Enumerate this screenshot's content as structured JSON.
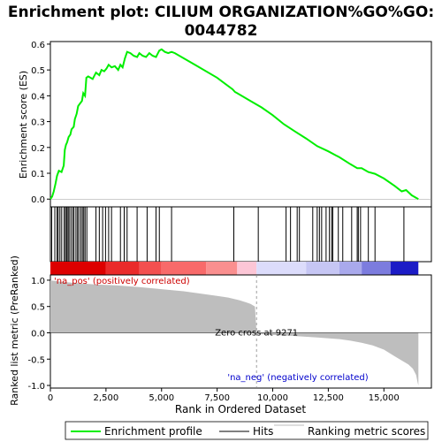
{
  "chart_data": {
    "type": "line",
    "title_lines": [
      "Enrichment plot: CILIUM ORGANIZATION%GO%GO:",
      "0044782"
    ],
    "xlabel": "Rank in Ordered Dataset",
    "xlim": [
      0,
      16500
    ],
    "x_ticks": [
      0,
      2500,
      5000,
      7500,
      10000,
      12500,
      15000
    ],
    "x_tick_labels": [
      "0",
      "2,500",
      "5,000",
      "7,500",
      "10,000",
      "12,500",
      "15,000"
    ],
    "es_panel": {
      "ylabel": "Enrichment score (ES)",
      "ylim": [
        -0.03,
        0.61
      ],
      "y_ticks": [
        0.0,
        0.1,
        0.2,
        0.3,
        0.4,
        0.5,
        0.6
      ],
      "y_tick_labels": [
        "0.0",
        "0.1",
        "0.2",
        "0.3",
        "0.4",
        "0.5",
        "0.6"
      ],
      "series_name": "Enrichment profile",
      "color": "#00ee00",
      "points": [
        [
          0,
          0.0
        ],
        [
          80,
          0.01
        ],
        [
          150,
          0.03
        ],
        [
          230,
          0.06
        ],
        [
          300,
          0.09
        ],
        [
          380,
          0.11
        ],
        [
          500,
          0.105
        ],
        [
          600,
          0.13
        ],
        [
          650,
          0.19
        ],
        [
          700,
          0.21
        ],
        [
          750,
          0.22
        ],
        [
          820,
          0.24
        ],
        [
          900,
          0.25
        ],
        [
          950,
          0.27
        ],
        [
          1050,
          0.28
        ],
        [
          1100,
          0.31
        ],
        [
          1180,
          0.33
        ],
        [
          1250,
          0.36
        ],
        [
          1330,
          0.37
        ],
        [
          1420,
          0.38
        ],
        [
          1480,
          0.41
        ],
        [
          1560,
          0.4
        ],
        [
          1620,
          0.47
        ],
        [
          1700,
          0.475
        ],
        [
          1900,
          0.465
        ],
        [
          2050,
          0.49
        ],
        [
          2200,
          0.48
        ],
        [
          2300,
          0.5
        ],
        [
          2420,
          0.495
        ],
        [
          2520,
          0.505
        ],
        [
          2620,
          0.52
        ],
        [
          2750,
          0.51
        ],
        [
          2900,
          0.515
        ],
        [
          3050,
          0.5
        ],
        [
          3150,
          0.52
        ],
        [
          3250,
          0.51
        ],
        [
          3350,
          0.545
        ],
        [
          3450,
          0.57
        ],
        [
          3600,
          0.565
        ],
        [
          3750,
          0.555
        ],
        [
          3900,
          0.55
        ],
        [
          4000,
          0.565
        ],
        [
          4150,
          0.555
        ],
        [
          4300,
          0.55
        ],
        [
          4450,
          0.565
        ],
        [
          4600,
          0.555
        ],
        [
          4750,
          0.55
        ],
        [
          4900,
          0.575
        ],
        [
          5000,
          0.58
        ],
        [
          5150,
          0.57
        ],
        [
          5300,
          0.565
        ],
        [
          5450,
          0.57
        ],
        [
          5600,
          0.565
        ],
        [
          6500,
          0.52
        ],
        [
          7500,
          0.47
        ],
        [
          8200,
          0.425
        ],
        [
          8300,
          0.415
        ],
        [
          8400,
          0.41
        ],
        [
          9000,
          0.38
        ],
        [
          9500,
          0.355
        ],
        [
          10000,
          0.325
        ],
        [
          10500,
          0.29
        ],
        [
          11000,
          0.262
        ],
        [
          11500,
          0.235
        ],
        [
          12000,
          0.205
        ],
        [
          12500,
          0.185
        ],
        [
          13000,
          0.162
        ],
        [
          13500,
          0.135
        ],
        [
          13800,
          0.12
        ],
        [
          14000,
          0.12
        ],
        [
          14300,
          0.105
        ],
        [
          14600,
          0.098
        ],
        [
          15000,
          0.08
        ],
        [
          15500,
          0.05
        ],
        [
          15800,
          0.03
        ],
        [
          16000,
          0.035
        ],
        [
          16250,
          0.015
        ],
        [
          16550,
          0.0
        ]
      ]
    },
    "hits": [
      60,
      200,
      300,
      350,
      430,
      510,
      620,
      680,
      730,
      790,
      840,
      920,
      1000,
      1060,
      1150,
      1220,
      1280,
      1370,
      1440,
      1500,
      1560,
      1640,
      2050,
      2200,
      2350,
      2480,
      2620,
      2750,
      3150,
      3320,
      3450,
      3900,
      4350,
      4750,
      4900,
      5450,
      8250,
      9350,
      10600,
      10800,
      11100,
      11200,
      11800,
      12000,
      12100,
      12200,
      12400,
      12550,
      12650,
      12700,
      12950,
      13150,
      13550,
      13800,
      13850,
      13950,
      14300,
      14600,
      15900
    ],
    "heat_bar": {
      "labels_pos": "'na_pos' (positively correlated)",
      "labels_neg": "'na_neg' (negatively correlated)",
      "segments": [
        {
          "x0": 0,
          "x1": 2500,
          "color": "#dd0000"
        },
        {
          "x0": 2500,
          "x1": 4000,
          "color": "#ea2a2a"
        },
        {
          "x0": 4000,
          "x1": 5000,
          "color": "#f34f4f"
        },
        {
          "x0": 5000,
          "x1": 7000,
          "color": "#f86a6a"
        },
        {
          "x0": 7000,
          "x1": 8400,
          "color": "#fa8f8f"
        },
        {
          "x0": 8400,
          "x1": 9271,
          "color": "#fcc6d6"
        },
        {
          "x0": 9271,
          "x1": 11500,
          "color": "#dcdcfb"
        },
        {
          "x0": 11500,
          "x1": 13000,
          "color": "#c6c6f4"
        },
        {
          "x0": 13000,
          "x1": 14000,
          "color": "#a9a9ec"
        },
        {
          "x0": 14000,
          "x1": 15300,
          "color": "#7c7cde"
        },
        {
          "x0": 15300,
          "x1": 16550,
          "color": "#1c1cc6"
        }
      ]
    },
    "metric_panel": {
      "ylabel": "Ranked list metric (PreRanked)",
      "ylim": [
        -1.05,
        1.1
      ],
      "y_ticks": [
        1.0,
        0.5,
        0.0,
        -0.5,
        -1.0
      ],
      "y_tick_labels": [
        "1.0",
        "0.5",
        "0.0",
        "-0.5",
        "-1.0"
      ],
      "zero_cross": 9271,
      "zero_cross_label": "Zero cross at 9271",
      "series_name": "Ranking metric scores",
      "fill_color": "#bebebe",
      "points": [
        [
          0,
          1.0
        ],
        [
          100,
          0.99
        ],
        [
          500,
          0.97
        ],
        [
          1000,
          0.95
        ],
        [
          2000,
          0.92
        ],
        [
          3000,
          0.9
        ],
        [
          4000,
          0.87
        ],
        [
          5000,
          0.83
        ],
        [
          6000,
          0.79
        ],
        [
          7000,
          0.73
        ],
        [
          7500,
          0.7
        ],
        [
          8000,
          0.67
        ],
        [
          8500,
          0.62
        ],
        [
          8800,
          0.58
        ],
        [
          9000,
          0.55
        ],
        [
          9200,
          0.5
        ],
        [
          9271,
          0.0
        ],
        [
          9300,
          -0.02
        ],
        [
          10000,
          -0.04
        ],
        [
          11000,
          -0.06
        ],
        [
          12000,
          -0.09
        ],
        [
          13000,
          -0.12
        ],
        [
          13500,
          -0.15
        ],
        [
          14000,
          -0.19
        ],
        [
          14500,
          -0.24
        ],
        [
          15000,
          -0.32
        ],
        [
          15500,
          -0.45
        ],
        [
          15900,
          -0.55
        ],
        [
          16100,
          -0.6
        ],
        [
          16300,
          -0.68
        ],
        [
          16450,
          -0.8
        ],
        [
          16520,
          -0.95
        ],
        [
          16550,
          -1.0
        ]
      ]
    },
    "legend": [
      {
        "label": "Enrichment profile",
        "color": "#00ee00",
        "kind": "line"
      },
      {
        "label": "Hits",
        "color": "#000000",
        "kind": "line"
      },
      {
        "label": "Ranking metric scores",
        "color": "#bebebe",
        "kind": "line"
      }
    ]
  }
}
